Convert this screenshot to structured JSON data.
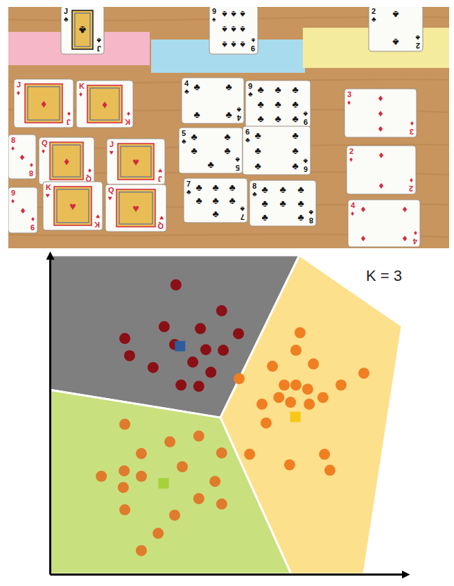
{
  "chart_data": {
    "type": "scatter",
    "annotation": "K = 3",
    "xlim": [
      0,
      112
    ],
    "ylim": [
      0,
      100
    ],
    "xticks": [],
    "yticks": [],
    "tick_labels": false,
    "series": [
      {
        "type": "area",
        "color": "#7f7f7f",
        "x": [
          0,
          78.6,
          53.7,
          0
        ],
        "values": [
          100,
          100,
          49.1,
          57.8
        ]
      },
      {
        "type": "area",
        "color": "#fde08c",
        "x": [
          78.6,
          110.9,
          98.9,
          76.0,
          53.7
        ],
        "values": [
          100,
          77.8,
          0,
          0,
          49.1
        ]
      },
      {
        "type": "area",
        "color": "#c9e07e",
        "x": [
          0,
          53.7,
          76.0,
          0
        ],
        "values": [
          57.8,
          49.1,
          0,
          0
        ]
      },
      {
        "marker": "circle",
        "color": "#8b1016",
        "x": [
          39.7,
          54.1,
          36.0,
          47.4,
          23.6,
          59.4,
          25.1,
          39.3,
          49.1,
          54.6,
          45.0,
          32.5,
          50.7,
          41.3,
          46.9
        ],
        "values": [
          90.7,
          82.6,
          77.6,
          77.0,
          73.9,
          75.4,
          68.5,
          72.0,
          70.4,
          70.2,
          66.5,
          64.8,
          63.3,
          59.3,
          58.9
        ]
      },
      {
        "marker": "circle",
        "color": "#f07f22",
        "x": [
          78.8,
          77.5,
          70.1,
          83.0,
          98.9,
          91.7,
          73.8,
          77.5,
          81.2,
          72.1,
          86.0,
          66.8,
          75.8,
          81.7,
          68.1,
          62.9,
          75.5,
          86.5,
          88.2,
          59.6
        ],
        "values": [
          75.7,
          70.2,
          65.2,
          65.9,
          63.0,
          59.3,
          59.3,
          59.3,
          58.0,
          55.4,
          55.4,
          53.3,
          53.9,
          53.3,
          47.4,
          37.6,
          34.3,
          37.6,
          32.6,
          61.3
        ]
      },
      {
        "marker": "circle",
        "color": "#e07b2c",
        "x": [
          23.6,
          37.8,
          46.9,
          54.1,
          28.8,
          16.2,
          23.4,
          28.8,
          23.1,
          52.0,
          23.6,
          39.3,
          46.9,
          54.1,
          34.1,
          28.8,
          41.7
        ],
        "values": [
          47.0,
          41.5,
          43.3,
          38.0,
          37.8,
          30.7,
          32.4,
          30.7,
          27.2,
          29.1,
          20.2,
          18.5,
          23.7,
          22.0,
          12.8,
          7.4,
          33.7
        ]
      },
      {
        "marker": "square",
        "color": "#2c5c9e",
        "x": [
          41.0
        ],
        "values": [
          71.5
        ]
      },
      {
        "marker": "square",
        "color": "#f7c815",
        "x": [
          77.3
        ],
        "values": [
          49.3
        ]
      },
      {
        "marker": "square",
        "color": "#a5d139",
        "x": [
          35.8
        ],
        "values": [
          28.5
        ]
      }
    ]
  },
  "photo": {
    "header_cards": [
      {
        "rank": "J",
        "suit": "♣"
      },
      {
        "rank": "9",
        "suit": "♠"
      },
      {
        "rank": "2",
        "suit": "♣"
      }
    ],
    "groups": [
      [
        {
          "rank": "J",
          "suit": "♦"
        },
        {
          "rank": "K",
          "suit": "♦"
        },
        {
          "rank": "8",
          "suit": "♦"
        },
        {
          "rank": "Q",
          "suit": "♦"
        },
        {
          "rank": "J",
          "suit": "♥"
        },
        {
          "rank": "9",
          "suit": "♦"
        },
        {
          "rank": "K",
          "suit": "♥"
        },
        {
          "rank": "Q",
          "suit": "♥"
        }
      ],
      [
        {
          "rank": "4",
          "suit": "♣"
        },
        {
          "rank": "9",
          "suit": "♣"
        },
        {
          "rank": "5",
          "suit": "♣"
        },
        {
          "rank": "6",
          "suit": "♣"
        },
        {
          "rank": "7",
          "suit": "♣"
        },
        {
          "rank": "8",
          "suit": "♣"
        }
      ],
      [
        {
          "rank": "3",
          "suit": "♦"
        },
        {
          "rank": "2",
          "suit": "♦"
        },
        {
          "rank": "4",
          "suit": "♦"
        }
      ]
    ]
  }
}
